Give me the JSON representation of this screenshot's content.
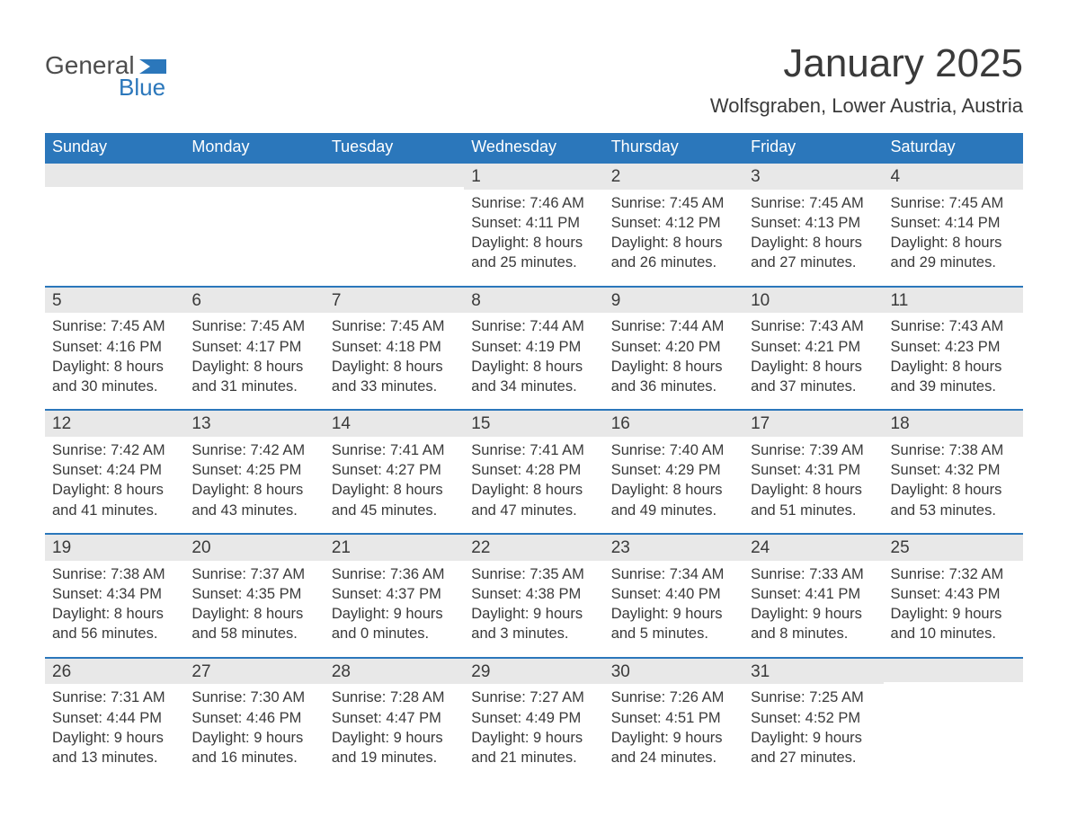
{
  "logo": {
    "text_top": "General",
    "text_bottom": "Blue"
  },
  "title": "January 2025",
  "location": "Wolfsgraben, Lower Austria, Austria",
  "colors": {
    "header_bg": "#2b77bb",
    "header_text": "#ffffff",
    "date_strip_bg": "#e8e8e8",
    "rule": "#2b77bb",
    "body_text": "#3a3a3a",
    "logo_gray": "#4d4d4d",
    "logo_blue": "#2b77bb"
  },
  "weekdays": [
    "Sunday",
    "Monday",
    "Tuesday",
    "Wednesday",
    "Thursday",
    "Friday",
    "Saturday"
  ],
  "weeks": [
    [
      {
        "date": "",
        "sunrise": "",
        "sunset": "",
        "daylight": ""
      },
      {
        "date": "",
        "sunrise": "",
        "sunset": "",
        "daylight": ""
      },
      {
        "date": "",
        "sunrise": "",
        "sunset": "",
        "daylight": ""
      },
      {
        "date": "1",
        "sunrise": "Sunrise: 7:46 AM",
        "sunset": "Sunset: 4:11 PM",
        "daylight": "Daylight: 8 hours and 25 minutes."
      },
      {
        "date": "2",
        "sunrise": "Sunrise: 7:45 AM",
        "sunset": "Sunset: 4:12 PM",
        "daylight": "Daylight: 8 hours and 26 minutes."
      },
      {
        "date": "3",
        "sunrise": "Sunrise: 7:45 AM",
        "sunset": "Sunset: 4:13 PM",
        "daylight": "Daylight: 8 hours and 27 minutes."
      },
      {
        "date": "4",
        "sunrise": "Sunrise: 7:45 AM",
        "sunset": "Sunset: 4:14 PM",
        "daylight": "Daylight: 8 hours and 29 minutes."
      }
    ],
    [
      {
        "date": "5",
        "sunrise": "Sunrise: 7:45 AM",
        "sunset": "Sunset: 4:16 PM",
        "daylight": "Daylight: 8 hours and 30 minutes."
      },
      {
        "date": "6",
        "sunrise": "Sunrise: 7:45 AM",
        "sunset": "Sunset: 4:17 PM",
        "daylight": "Daylight: 8 hours and 31 minutes."
      },
      {
        "date": "7",
        "sunrise": "Sunrise: 7:45 AM",
        "sunset": "Sunset: 4:18 PM",
        "daylight": "Daylight: 8 hours and 33 minutes."
      },
      {
        "date": "8",
        "sunrise": "Sunrise: 7:44 AM",
        "sunset": "Sunset: 4:19 PM",
        "daylight": "Daylight: 8 hours and 34 minutes."
      },
      {
        "date": "9",
        "sunrise": "Sunrise: 7:44 AM",
        "sunset": "Sunset: 4:20 PM",
        "daylight": "Daylight: 8 hours and 36 minutes."
      },
      {
        "date": "10",
        "sunrise": "Sunrise: 7:43 AM",
        "sunset": "Sunset: 4:21 PM",
        "daylight": "Daylight: 8 hours and 37 minutes."
      },
      {
        "date": "11",
        "sunrise": "Sunrise: 7:43 AM",
        "sunset": "Sunset: 4:23 PM",
        "daylight": "Daylight: 8 hours and 39 minutes."
      }
    ],
    [
      {
        "date": "12",
        "sunrise": "Sunrise: 7:42 AM",
        "sunset": "Sunset: 4:24 PM",
        "daylight": "Daylight: 8 hours and 41 minutes."
      },
      {
        "date": "13",
        "sunrise": "Sunrise: 7:42 AM",
        "sunset": "Sunset: 4:25 PM",
        "daylight": "Daylight: 8 hours and 43 minutes."
      },
      {
        "date": "14",
        "sunrise": "Sunrise: 7:41 AM",
        "sunset": "Sunset: 4:27 PM",
        "daylight": "Daylight: 8 hours and 45 minutes."
      },
      {
        "date": "15",
        "sunrise": "Sunrise: 7:41 AM",
        "sunset": "Sunset: 4:28 PM",
        "daylight": "Daylight: 8 hours and 47 minutes."
      },
      {
        "date": "16",
        "sunrise": "Sunrise: 7:40 AM",
        "sunset": "Sunset: 4:29 PM",
        "daylight": "Daylight: 8 hours and 49 minutes."
      },
      {
        "date": "17",
        "sunrise": "Sunrise: 7:39 AM",
        "sunset": "Sunset: 4:31 PM",
        "daylight": "Daylight: 8 hours and 51 minutes."
      },
      {
        "date": "18",
        "sunrise": "Sunrise: 7:38 AM",
        "sunset": "Sunset: 4:32 PM",
        "daylight": "Daylight: 8 hours and 53 minutes."
      }
    ],
    [
      {
        "date": "19",
        "sunrise": "Sunrise: 7:38 AM",
        "sunset": "Sunset: 4:34 PM",
        "daylight": "Daylight: 8 hours and 56 minutes."
      },
      {
        "date": "20",
        "sunrise": "Sunrise: 7:37 AM",
        "sunset": "Sunset: 4:35 PM",
        "daylight": "Daylight: 8 hours and 58 minutes."
      },
      {
        "date": "21",
        "sunrise": "Sunrise: 7:36 AM",
        "sunset": "Sunset: 4:37 PM",
        "daylight": "Daylight: 9 hours and 0 minutes."
      },
      {
        "date": "22",
        "sunrise": "Sunrise: 7:35 AM",
        "sunset": "Sunset: 4:38 PM",
        "daylight": "Daylight: 9 hours and 3 minutes."
      },
      {
        "date": "23",
        "sunrise": "Sunrise: 7:34 AM",
        "sunset": "Sunset: 4:40 PM",
        "daylight": "Daylight: 9 hours and 5 minutes."
      },
      {
        "date": "24",
        "sunrise": "Sunrise: 7:33 AM",
        "sunset": "Sunset: 4:41 PM",
        "daylight": "Daylight: 9 hours and 8 minutes."
      },
      {
        "date": "25",
        "sunrise": "Sunrise: 7:32 AM",
        "sunset": "Sunset: 4:43 PM",
        "daylight": "Daylight: 9 hours and 10 minutes."
      }
    ],
    [
      {
        "date": "26",
        "sunrise": "Sunrise: 7:31 AM",
        "sunset": "Sunset: 4:44 PM",
        "daylight": "Daylight: 9 hours and 13 minutes."
      },
      {
        "date": "27",
        "sunrise": "Sunrise: 7:30 AM",
        "sunset": "Sunset: 4:46 PM",
        "daylight": "Daylight: 9 hours and 16 minutes."
      },
      {
        "date": "28",
        "sunrise": "Sunrise: 7:28 AM",
        "sunset": "Sunset: 4:47 PM",
        "daylight": "Daylight: 9 hours and 19 minutes."
      },
      {
        "date": "29",
        "sunrise": "Sunrise: 7:27 AM",
        "sunset": "Sunset: 4:49 PM",
        "daylight": "Daylight: 9 hours and 21 minutes."
      },
      {
        "date": "30",
        "sunrise": "Sunrise: 7:26 AM",
        "sunset": "Sunset: 4:51 PM",
        "daylight": "Daylight: 9 hours and 24 minutes."
      },
      {
        "date": "31",
        "sunrise": "Sunrise: 7:25 AM",
        "sunset": "Sunset: 4:52 PM",
        "daylight": "Daylight: 9 hours and 27 minutes."
      },
      {
        "date": "",
        "sunrise": "",
        "sunset": "",
        "daylight": ""
      }
    ]
  ]
}
